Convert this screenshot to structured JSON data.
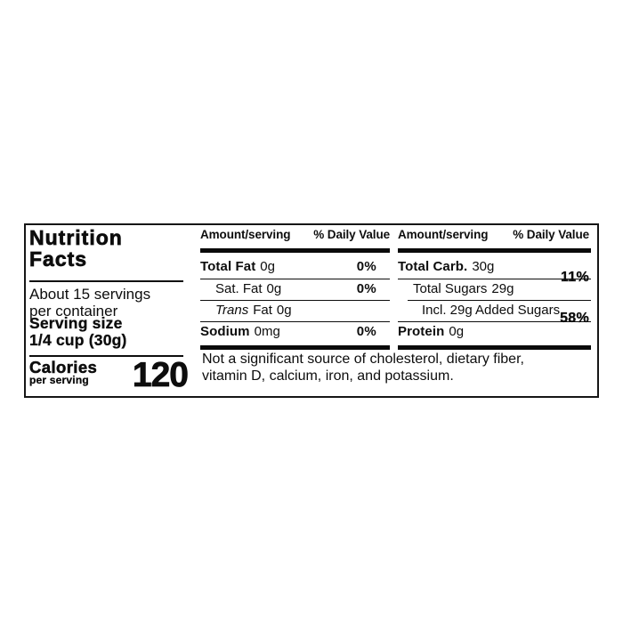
{
  "label": {
    "title": {
      "line1": "Nutrition",
      "line2": "Facts"
    },
    "servings": {
      "line1": "About 15 servings",
      "line2": "per container"
    },
    "serving_size": {
      "line1": "Serving size",
      "line2": "1/4 cup (30g)"
    },
    "calories": {
      "label": "Calories",
      "sublabel": "per serving",
      "value": "120"
    },
    "columns": [
      {
        "header": {
          "amount": "Amount/serving",
          "daily_value": "% Daily Value"
        },
        "rows": [
          {
            "name": "Total Fat",
            "amount": "0g",
            "dv": "0%"
          },
          {
            "name": "Sat. Fat",
            "amount": "0g",
            "dv": "0%"
          },
          {
            "name_italic": "Trans",
            "name": "Fat",
            "amount": "0g",
            "dv": ""
          },
          {
            "name": "Sodium",
            "amount": "0mg",
            "dv": "0%"
          }
        ]
      },
      {
        "header": {
          "amount": "Amount/serving",
          "daily_value": "% Daily Value"
        },
        "rows": [
          {
            "name": "Total Carb.",
            "amount": "30g"
          },
          {
            "name": "Total Sugars",
            "amount": "29g"
          },
          {
            "name": "Incl. 29g Added Sugars",
            "amount": ""
          },
          {
            "name": "Protein",
            "amount": "0g"
          }
        ],
        "straddle_values": [
          {
            "text": "11%"
          },
          {
            "text": "58%"
          }
        ]
      }
    ],
    "footnote_lines": [
      "Not a significant source of cholesterol, dietary fiber,",
      "vitamin D, calcium, iron, and potassium."
    ],
    "colors": {
      "ink": "#0d0d0d",
      "background": "#ffffff"
    }
  }
}
